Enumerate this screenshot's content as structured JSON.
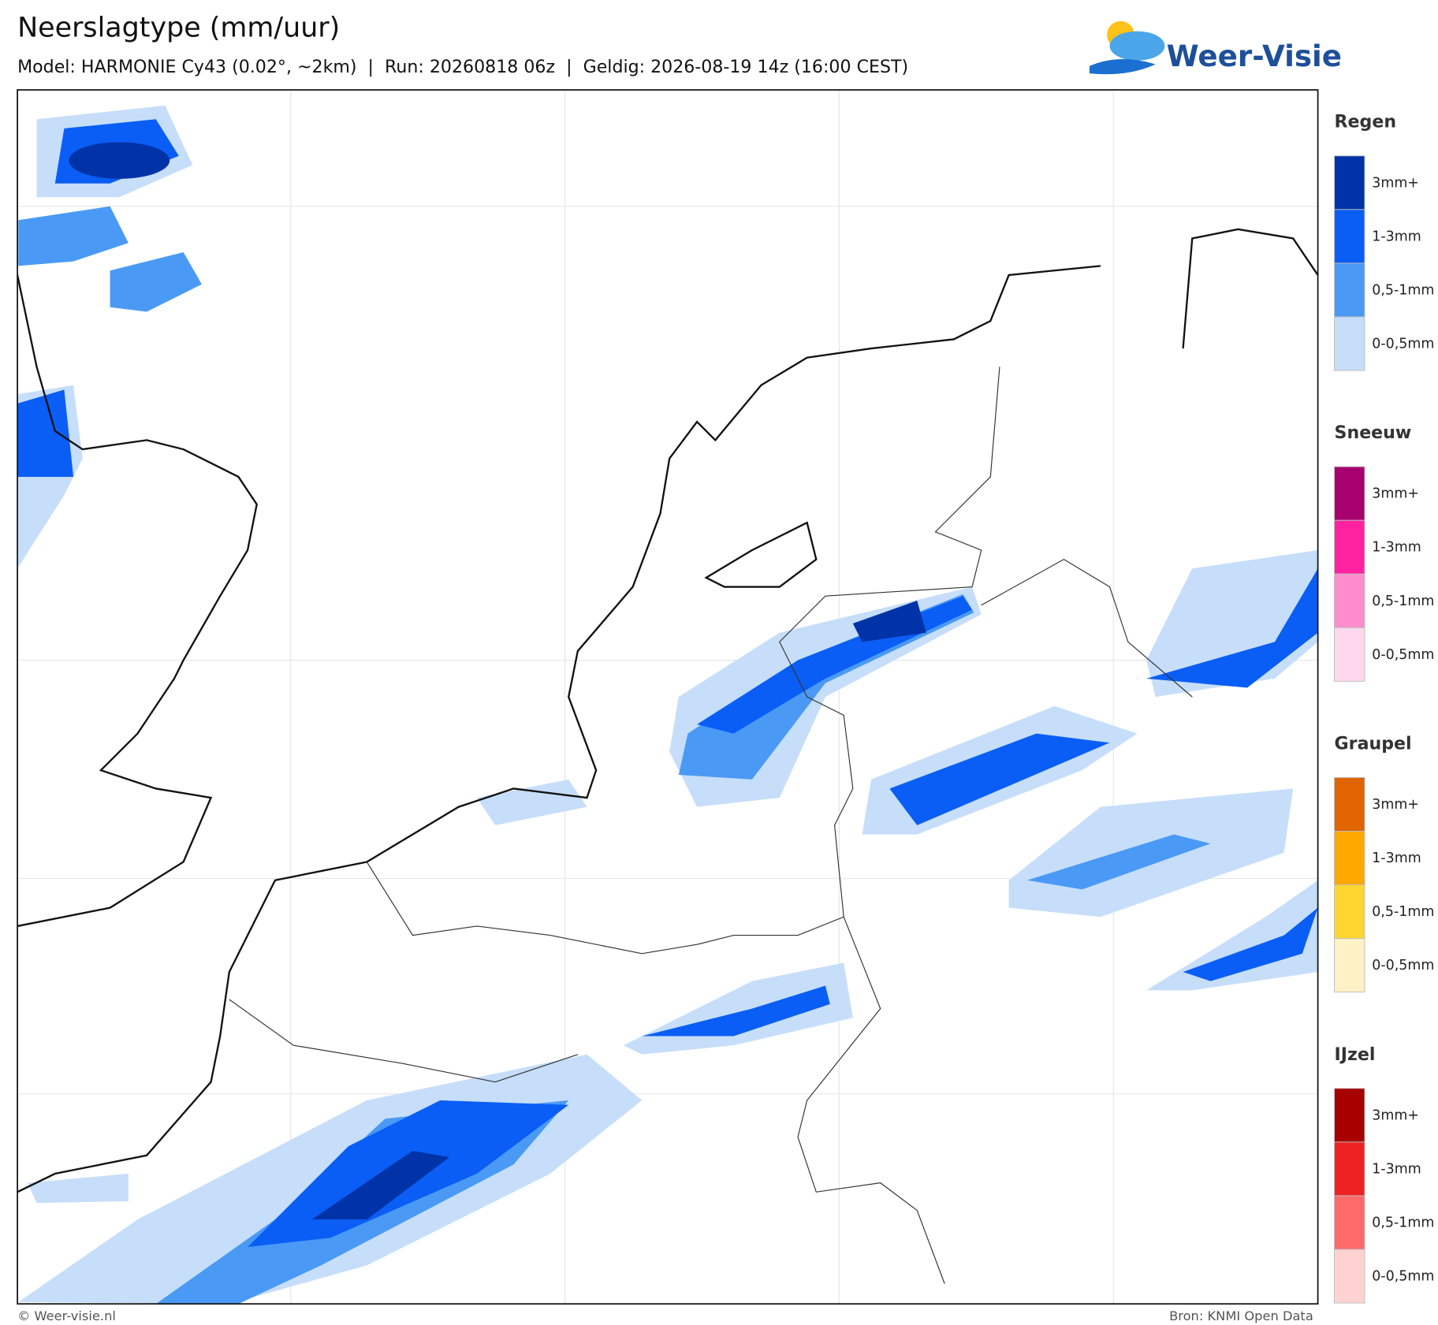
{
  "header": {
    "title": "Neerslagtype (mm/uur)",
    "subtitle": "Model: HARMONIE Cy43 (0.02°, ~2km)  |  Run: 20260818 06z  |  Geldig: 2026-08-19 14z (16:00 CEST)"
  },
  "logo": "Weer-Visie",
  "legend": [
    {
      "name": "Regen",
      "items": [
        {
          "label": "3mm+",
          "color": "#0033a8"
        },
        {
          "label": "1-3mm",
          "color": "#0a5ef5"
        },
        {
          "label": "0,5-1mm",
          "color": "#4a9af5"
        },
        {
          "label": "0-0,5mm",
          "color": "#c6defa"
        }
      ]
    },
    {
      "name": "Sneeuw",
      "items": [
        {
          "label": "3mm+",
          "color": "#a8006e"
        },
        {
          "label": "1-3mm",
          "color": "#ff22a0"
        },
        {
          "label": "0,5-1mm",
          "color": "#ff8ccc"
        },
        {
          "label": "0-0,5mm",
          "color": "#ffd8ee"
        }
      ]
    },
    {
      "name": "Graupel",
      "items": [
        {
          "label": "3mm+",
          "color": "#e06400"
        },
        {
          "label": "1-3mm",
          "color": "#ffa800"
        },
        {
          "label": "0,5-1mm",
          "color": "#ffd62e"
        },
        {
          "label": "0-0,5mm",
          "color": "#fff2c6"
        }
      ]
    },
    {
      "name": "IJzel",
      "items": [
        {
          "label": "3mm+",
          "color": "#a80000"
        },
        {
          "label": "1-3mm",
          "color": "#ee2222"
        },
        {
          "label": "0,5-1mm",
          "color": "#ff6a6a"
        },
        {
          "label": "0-0,5mm",
          "color": "#ffd2d2"
        }
      ]
    }
  ],
  "footer": {
    "left": "© Weer-visie.nl",
    "right": "Bron: KNMI Open Data"
  }
}
